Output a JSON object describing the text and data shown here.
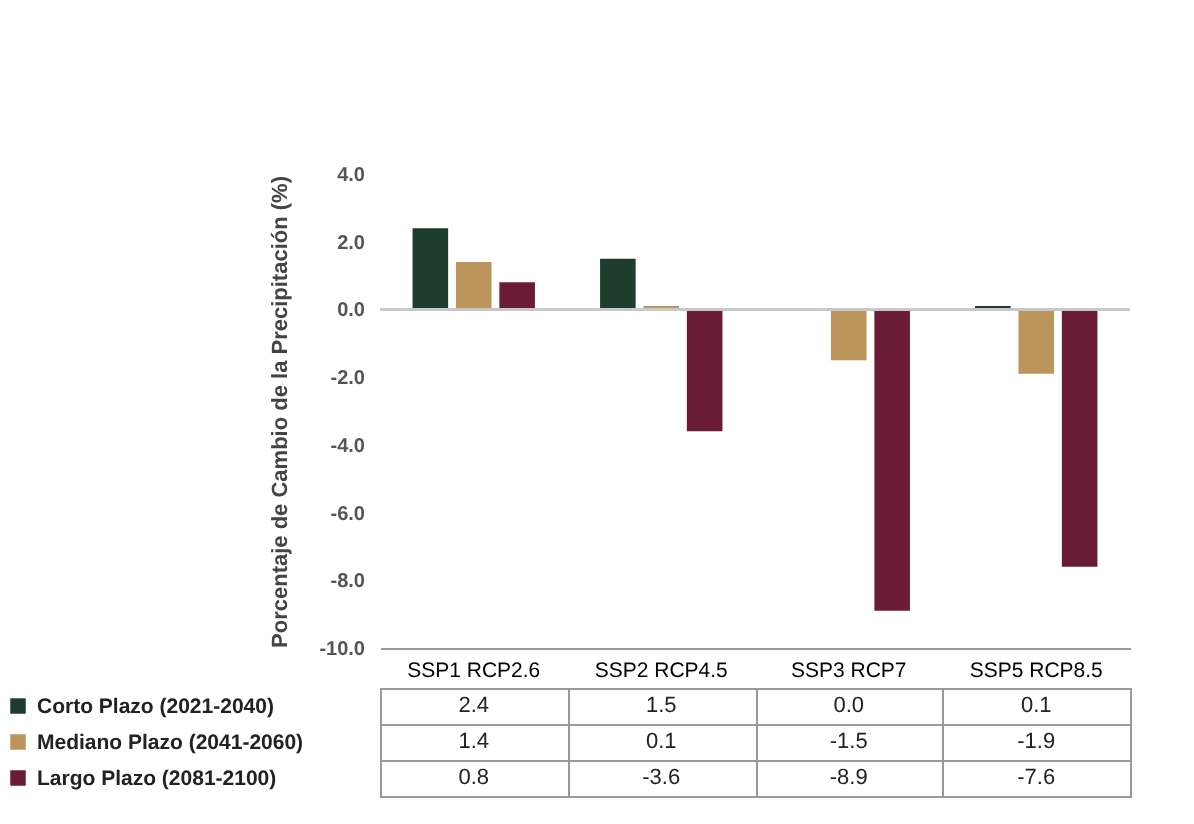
{
  "chart_data": {
    "type": "bar",
    "ylabel": "Porcentaje de Cambio de la Precipitación (%)",
    "categories": [
      "SSP1 RCP2.6",
      "SSP2 RCP4.5",
      "SSP3 RCP7",
      "SSP5 RCP8.5"
    ],
    "series": [
      {
        "name": "Corto Plazo (2021-2040)",
        "color": "#1e3d2f",
        "values": [
          2.4,
          1.5,
          0.0,
          0.1
        ],
        "value_labels": [
          "2.4",
          "1.5",
          "0.0",
          "0.1"
        ]
      },
      {
        "name": "Mediano Plazo (2041-2060)",
        "color": "#bc955c",
        "values": [
          1.4,
          0.1,
          -1.5,
          -1.9
        ],
        "value_labels": [
          "1.4",
          "0.1",
          "-1.5",
          "-1.9"
        ]
      },
      {
        "name": "Largo Plazo (2081-2100)",
        "color": "#6a1b35",
        "values": [
          0.8,
          -3.6,
          -8.9,
          -7.6
        ],
        "value_labels": [
          "0.8",
          "-3.6",
          "-8.9",
          "-7.6"
        ]
      }
    ],
    "ylim": [
      -10,
      4
    ],
    "yticks": [
      {
        "value": -10,
        "label": "-10.0"
      },
      {
        "value": -8,
        "label": "-8.0"
      },
      {
        "value": -6,
        "label": "-6.0"
      },
      {
        "value": -4,
        "label": "-4.0"
      },
      {
        "value": -2,
        "label": "-2.0"
      },
      {
        "value": 0,
        "label": "0.0"
      },
      {
        "value": 2,
        "label": "2.0"
      },
      {
        "value": 4,
        "label": "4.0"
      }
    ],
    "ref_lines": [
      {
        "axis": "y",
        "value": 0,
        "color": "#c8c8c8"
      }
    ],
    "grid": false,
    "legend": "bottom left"
  }
}
